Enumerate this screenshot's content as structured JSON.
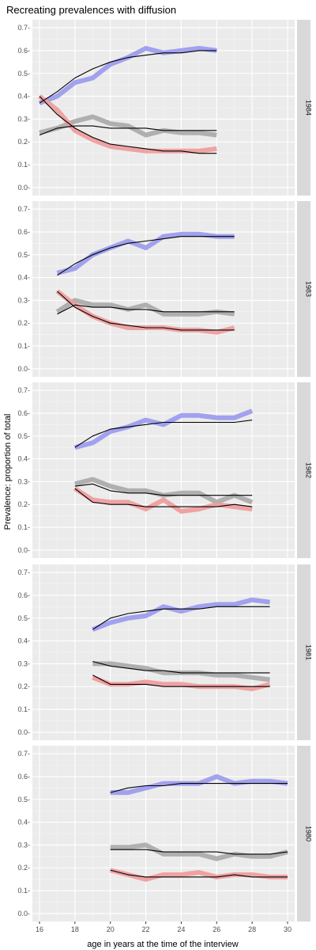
{
  "chart_data": {
    "type": "line",
    "title": "Recreating prevalences with diffusion",
    "xlabel": "age in years at the time of the interview",
    "ylabel": "Prevalence: proportion of total",
    "xlim": [
      15.6,
      30.4
    ],
    "ylim": [
      -0.035,
      0.735
    ],
    "x_ticks": [
      16,
      18,
      20,
      22,
      24,
      26,
      28,
      30
    ],
    "y_ticks": [
      0.0,
      0.1,
      0.2,
      0.3,
      0.4,
      0.5,
      0.6,
      0.7
    ],
    "y_tick_labels": [
      "0.0-",
      "0.1-",
      "0.2-",
      "0.3-",
      "0.4-",
      "0.5-",
      "0.6-",
      "0.7-"
    ],
    "grid": true,
    "facets": [
      {
        "label": "1984",
        "x": [
          16,
          17,
          18,
          19,
          20,
          21,
          22,
          23,
          24,
          25,
          26
        ],
        "series": [
          {
            "color": "#9999ee",
            "kind": "observed",
            "values": [
              0.37,
              0.4,
              0.46,
              0.48,
              0.54,
              0.57,
              0.61,
              0.59,
              0.6,
              0.61,
              0.6
            ]
          },
          {
            "color": "#a9a9a9",
            "kind": "observed",
            "values": [
              0.24,
              0.26,
              0.29,
              0.31,
              0.28,
              0.27,
              0.23,
              0.25,
              0.24,
              0.24,
              0.23
            ]
          },
          {
            "color": "#ef9a9a",
            "kind": "observed",
            "values": [
              0.4,
              0.34,
              0.25,
              0.21,
              0.18,
              0.17,
              0.16,
              0.16,
              0.16,
              0.16,
              0.17
            ]
          },
          {
            "color": "#000000",
            "kind": "fitted",
            "values": [
              0.37,
              0.42,
              0.48,
              0.52,
              0.55,
              0.57,
              0.58,
              0.59,
              0.59,
              0.6,
              0.6
            ]
          },
          {
            "color": "#000000",
            "kind": "fitted",
            "values": [
              0.23,
              0.26,
              0.27,
              0.27,
              0.26,
              0.26,
              0.26,
              0.25,
              0.25,
              0.25,
              0.25
            ]
          },
          {
            "color": "#000000",
            "kind": "fitted",
            "values": [
              0.4,
              0.32,
              0.26,
              0.22,
              0.19,
              0.18,
              0.17,
              0.16,
              0.16,
              0.15,
              0.15
            ]
          }
        ]
      },
      {
        "label": "1983",
        "x": [
          17,
          18,
          19,
          20,
          21,
          22,
          23,
          24,
          25,
          26,
          27
        ],
        "series": [
          {
            "color": "#9999ee",
            "kind": "observed",
            "values": [
              0.42,
              0.44,
              0.5,
              0.53,
              0.56,
              0.53,
              0.58,
              0.59,
              0.59,
              0.58,
              0.58
            ]
          },
          {
            "color": "#a9a9a9",
            "kind": "observed",
            "values": [
              0.25,
              0.3,
              0.28,
              0.28,
              0.26,
              0.28,
              0.24,
              0.24,
              0.24,
              0.25,
              0.24
            ]
          },
          {
            "color": "#ef9a9a",
            "kind": "observed",
            "values": [
              0.34,
              0.28,
              0.23,
              0.2,
              0.18,
              0.18,
              0.18,
              0.17,
              0.17,
              0.16,
              0.18
            ]
          },
          {
            "color": "#000000",
            "kind": "fitted",
            "values": [
              0.41,
              0.46,
              0.5,
              0.53,
              0.55,
              0.56,
              0.57,
              0.58,
              0.58,
              0.58,
              0.58
            ]
          },
          {
            "color": "#000000",
            "kind": "fitted",
            "values": [
              0.24,
              0.28,
              0.27,
              0.27,
              0.26,
              0.26,
              0.25,
              0.25,
              0.25,
              0.25,
              0.25
            ]
          },
          {
            "color": "#000000",
            "kind": "fitted",
            "values": [
              0.34,
              0.27,
              0.23,
              0.2,
              0.19,
              0.18,
              0.18,
              0.17,
              0.17,
              0.17,
              0.17
            ]
          }
        ]
      },
      {
        "label": "1982",
        "x": [
          18,
          19,
          20,
          21,
          22,
          23,
          24,
          25,
          26,
          27,
          28
        ],
        "series": [
          {
            "color": "#9999ee",
            "kind": "observed",
            "values": [
              0.45,
              0.47,
              0.52,
              0.54,
              0.57,
              0.55,
              0.59,
              0.59,
              0.58,
              0.58,
              0.61
            ]
          },
          {
            "color": "#a9a9a9",
            "kind": "observed",
            "values": [
              0.29,
              0.31,
              0.28,
              0.26,
              0.26,
              0.24,
              0.25,
              0.25,
              0.21,
              0.24,
              0.21
            ]
          },
          {
            "color": "#ef9a9a",
            "kind": "observed",
            "values": [
              0.27,
              0.22,
              0.21,
              0.21,
              0.18,
              0.22,
              0.17,
              0.18,
              0.2,
              0.19,
              0.18
            ]
          },
          {
            "color": "#000000",
            "kind": "fitted",
            "values": [
              0.45,
              0.5,
              0.53,
              0.54,
              0.55,
              0.56,
              0.56,
              0.56,
              0.56,
              0.56,
              0.57
            ]
          },
          {
            "color": "#000000",
            "kind": "fitted",
            "values": [
              0.28,
              0.29,
              0.26,
              0.25,
              0.25,
              0.24,
              0.24,
              0.24,
              0.24,
              0.24,
              0.24
            ]
          },
          {
            "color": "#000000",
            "kind": "fitted",
            "values": [
              0.27,
              0.21,
              0.2,
              0.2,
              0.19,
              0.19,
              0.19,
              0.19,
              0.19,
              0.2,
              0.19
            ]
          }
        ]
      },
      {
        "label": "1981",
        "x": [
          19,
          20,
          21,
          22,
          23,
          24,
          25,
          26,
          27,
          28,
          29
        ],
        "series": [
          {
            "color": "#9999ee",
            "kind": "observed",
            "values": [
              0.45,
              0.48,
              0.5,
              0.51,
              0.55,
              0.53,
              0.55,
              0.56,
              0.56,
              0.58,
              0.57
            ]
          },
          {
            "color": "#a9a9a9",
            "kind": "observed",
            "values": [
              0.3,
              0.3,
              0.29,
              0.28,
              0.26,
              0.26,
              0.26,
              0.25,
              0.25,
              0.24,
              0.23
            ]
          },
          {
            "color": "#ef9a9a",
            "kind": "observed",
            "values": [
              0.24,
              0.21,
              0.21,
              0.22,
              0.21,
              0.21,
              0.2,
              0.2,
              0.2,
              0.19,
              0.21
            ]
          },
          {
            "color": "#000000",
            "kind": "fitted",
            "values": [
              0.45,
              0.5,
              0.52,
              0.53,
              0.54,
              0.54,
              0.54,
              0.55,
              0.55,
              0.55,
              0.55
            ]
          },
          {
            "color": "#000000",
            "kind": "fitted",
            "values": [
              0.31,
              0.29,
              0.28,
              0.27,
              0.27,
              0.26,
              0.26,
              0.26,
              0.26,
              0.26,
              0.26
            ]
          },
          {
            "color": "#000000",
            "kind": "fitted",
            "values": [
              0.25,
              0.21,
              0.21,
              0.21,
              0.2,
              0.2,
              0.2,
              0.2,
              0.2,
              0.2,
              0.2
            ]
          }
        ]
      },
      {
        "label": "1980",
        "x": [
          20,
          21,
          22,
          23,
          24,
          25,
          26,
          27,
          28,
          29,
          30
        ],
        "series": [
          {
            "color": "#9999ee",
            "kind": "observed",
            "values": [
              0.53,
              0.53,
              0.55,
              0.57,
              0.57,
              0.57,
              0.6,
              0.57,
              0.58,
              0.58,
              0.57
            ]
          },
          {
            "color": "#a9a9a9",
            "kind": "observed",
            "values": [
              0.29,
              0.29,
              0.3,
              0.26,
              0.26,
              0.26,
              0.24,
              0.26,
              0.25,
              0.25,
              0.27
            ]
          },
          {
            "color": "#ef9a9a",
            "kind": "observed",
            "values": [
              0.19,
              0.17,
              0.15,
              0.17,
              0.17,
              0.18,
              0.16,
              0.17,
              0.17,
              0.16,
              0.16
            ]
          },
          {
            "color": "#000000",
            "kind": "fitted",
            "values": [
              0.53,
              0.55,
              0.56,
              0.56,
              0.57,
              0.57,
              0.57,
              0.57,
              0.57,
              0.57,
              0.57
            ]
          },
          {
            "color": "#000000",
            "kind": "fitted",
            "values": [
              0.28,
              0.28,
              0.28,
              0.27,
              0.27,
              0.27,
              0.27,
              0.26,
              0.26,
              0.26,
              0.27
            ]
          },
          {
            "color": "#000000",
            "kind": "fitted",
            "values": [
              0.19,
              0.17,
              0.16,
              0.16,
              0.16,
              0.16,
              0.16,
              0.17,
              0.16,
              0.16,
              0.16
            ]
          }
        ]
      }
    ]
  }
}
